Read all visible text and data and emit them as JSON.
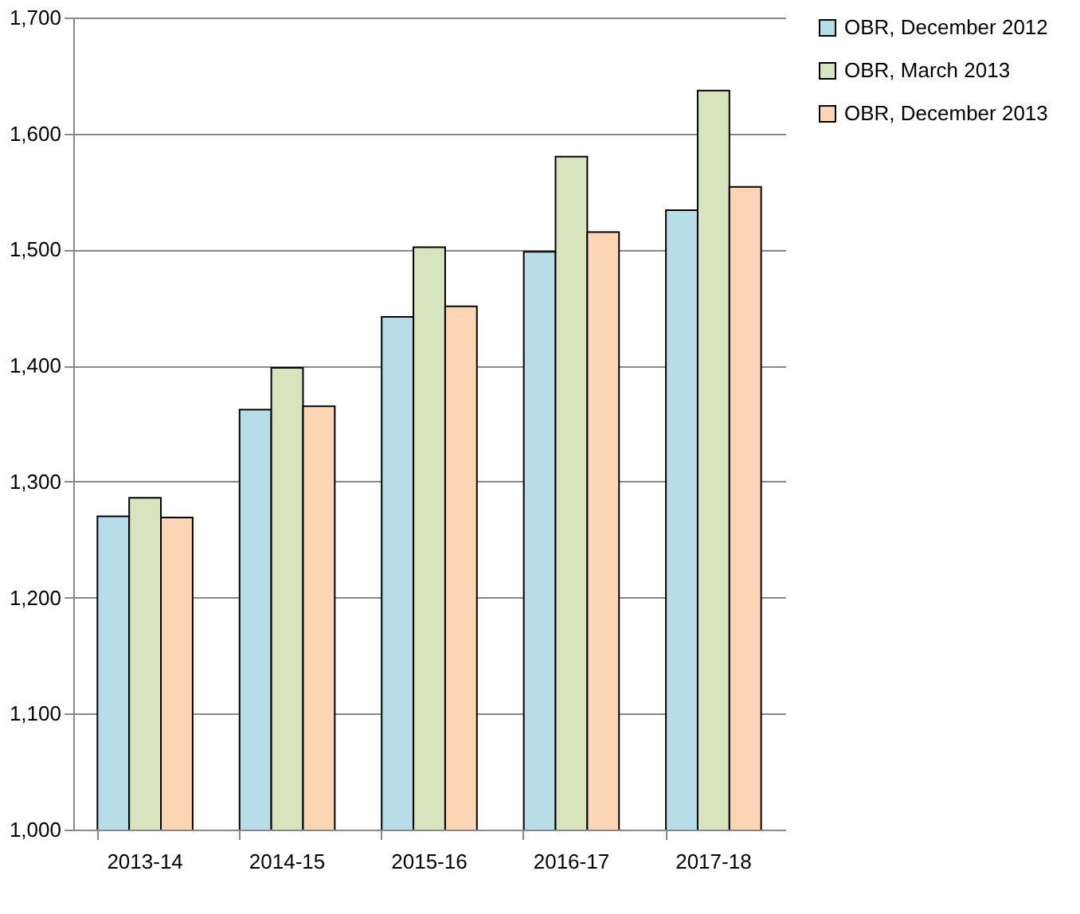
{
  "chart_data": {
    "type": "bar",
    "categories": [
      "2013-14",
      "2014-15",
      "2015-16",
      "2016-17",
      "2017-18"
    ],
    "series": [
      {
        "name": "OBR, December 2012",
        "color": "#b7dde8",
        "values": [
          1270,
          1362,
          1442,
          1498,
          1534
        ]
      },
      {
        "name": "OBR, March 2013",
        "color": "#d7e4bd",
        "values": [
          1286,
          1398,
          1502,
          1580,
          1637
        ]
      },
      {
        "name": "OBR, December 2013",
        "color": "#fcd5b5",
        "values": [
          1269,
          1365,
          1451,
          1515,
          1554
        ]
      }
    ],
    "ylim": [
      1000,
      1700
    ],
    "yticks": [
      {
        "value": 1000,
        "label": "1,000"
      },
      {
        "value": 1100,
        "label": "1,100"
      },
      {
        "value": 1200,
        "label": "1,200"
      },
      {
        "value": 1300,
        "label": "1,300"
      },
      {
        "value": 1400,
        "label": "1,400"
      },
      {
        "value": 1500,
        "label": "1,500"
      },
      {
        "value": 1600,
        "label": "1,600"
      },
      {
        "value": 1700,
        "label": "1,700"
      }
    ],
    "grid": "y",
    "legend": "top right"
  }
}
